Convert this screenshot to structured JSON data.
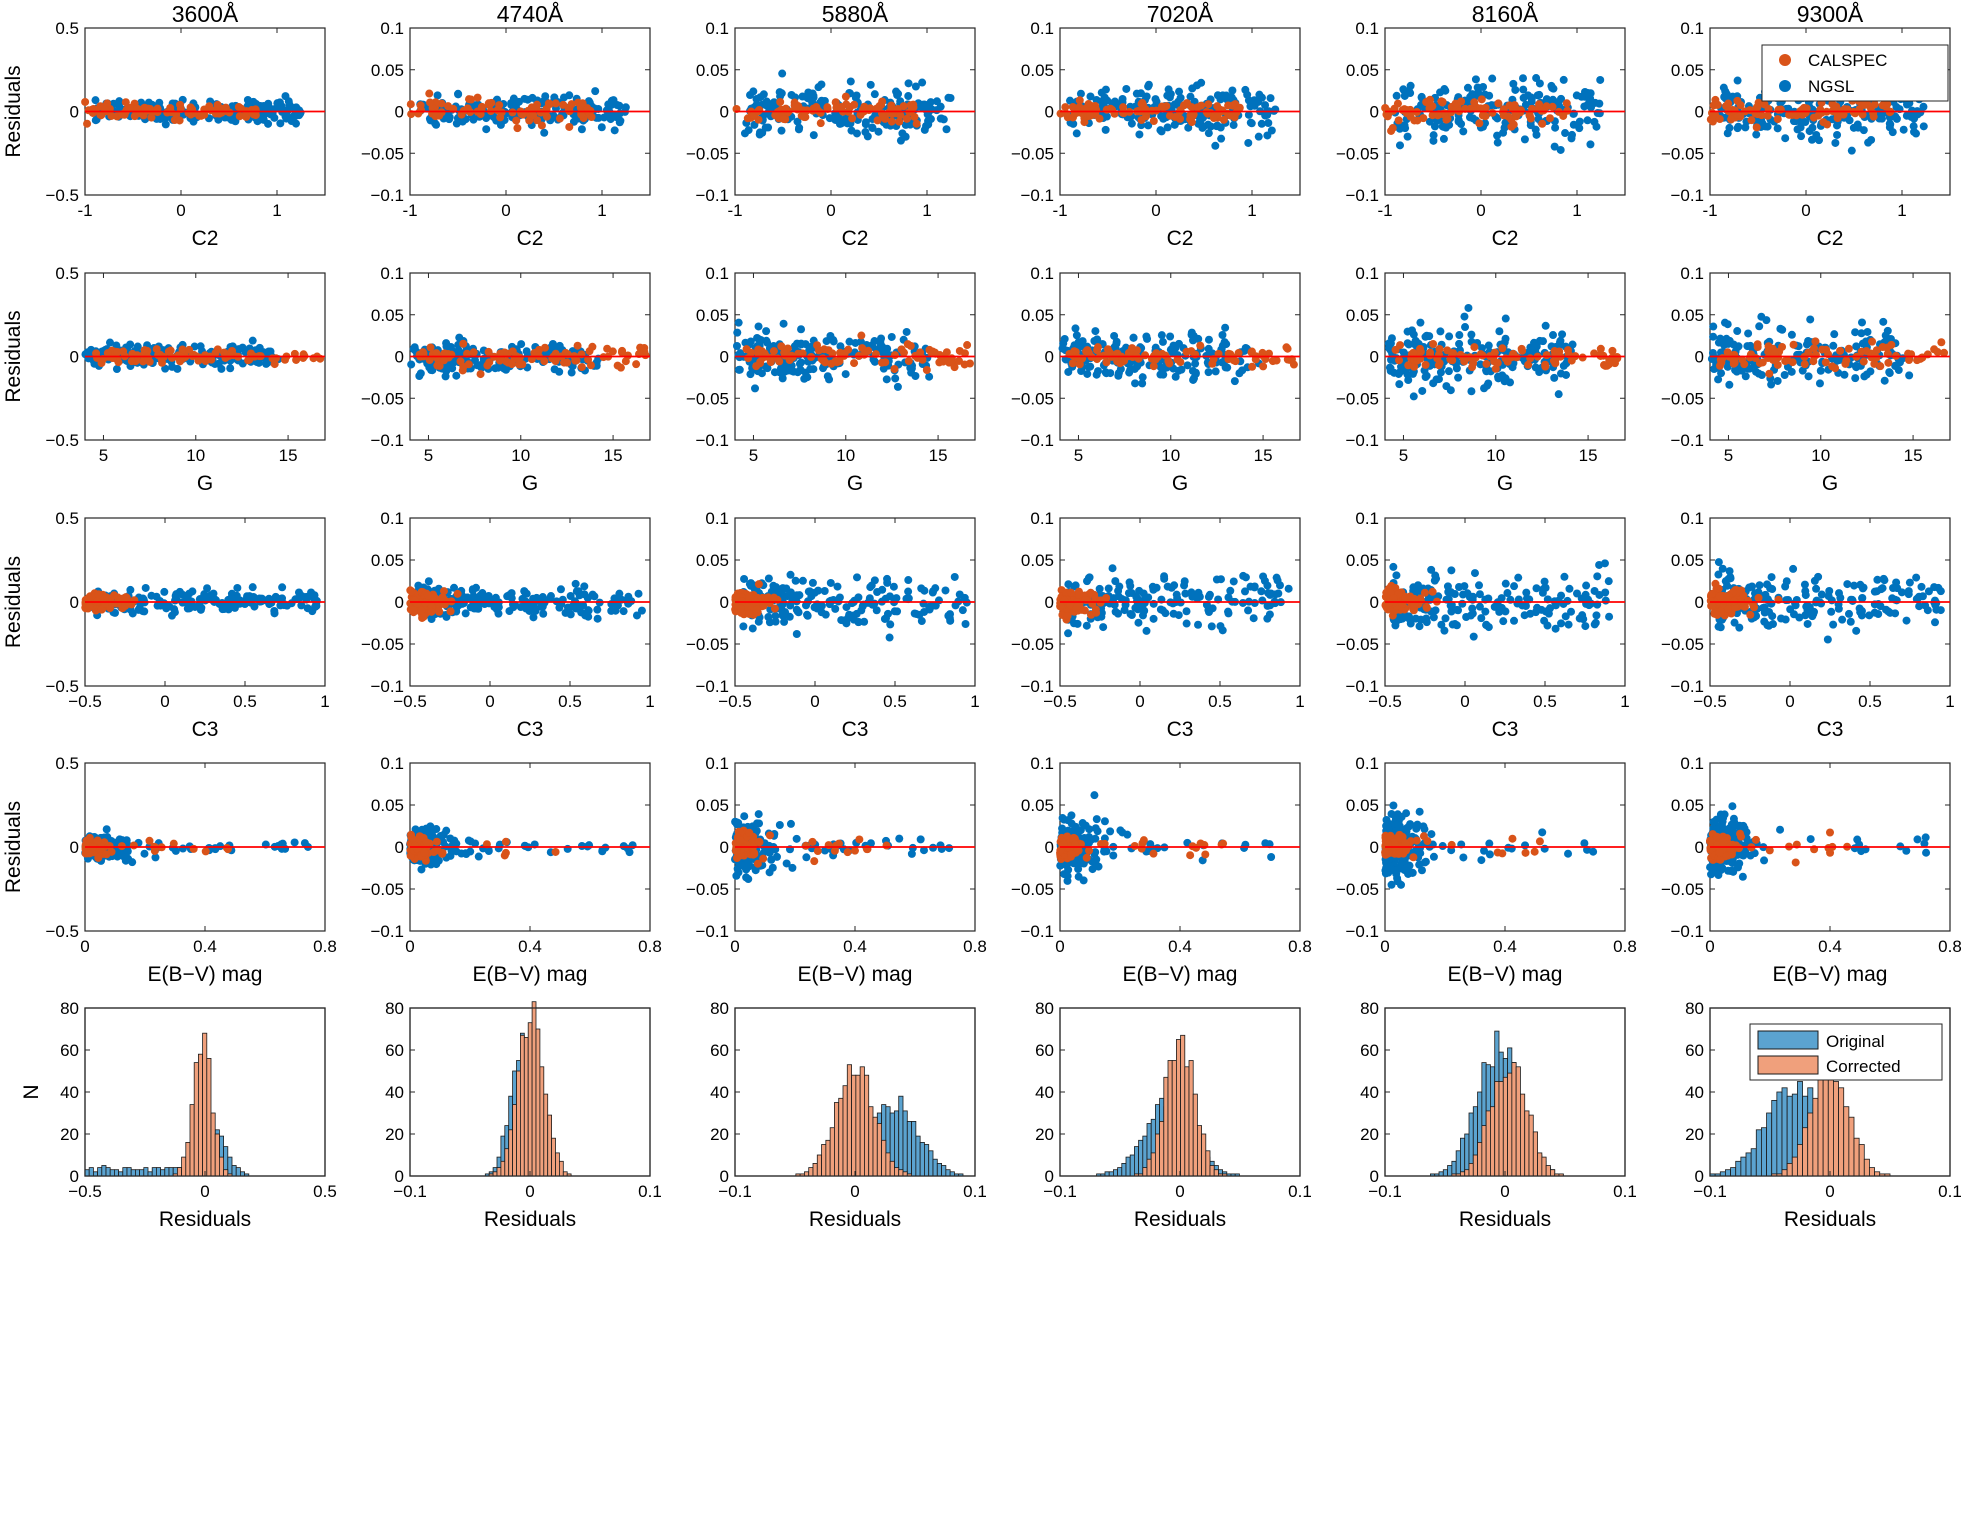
{
  "chart_data": {
    "type": "scatter",
    "figure": "Residual diagnostics grid (5 rows x 6 wavelength columns)",
    "columns": [
      "3600Å",
      "4740Å",
      "5880Å",
      "7020Å",
      "8160Å",
      "9300Å"
    ],
    "colors": {
      "calspec": "#D95319",
      "ngsl": "#0072BD",
      "zero_line": "#FF0000",
      "original": "#5BA3D0",
      "corrected": "#F0A07C"
    },
    "scatter_legend": [
      "CALSPEC",
      "NGSL"
    ],
    "hist_legend": [
      "Original",
      "Corrected"
    ],
    "rows": [
      {
        "name": "C2",
        "xlabel": "C2",
        "ylabel": "Residuals",
        "xlim": [
          -1,
          1.5
        ],
        "xticks": [
          -1,
          0,
          1
        ],
        "xtick_labels": [
          "-1",
          "0",
          "1"
        ],
        "x_ngsl": [
          -0.9,
          1.25
        ],
        "x_calspec": [
          -1.0,
          0.9
        ],
        "ylims": [
          [
            -0.5,
            0.5
          ],
          [
            -0.1,
            0.1
          ],
          [
            -0.1,
            0.1
          ],
          [
            -0.1,
            0.1
          ],
          [
            -0.1,
            0.1
          ],
          [
            -0.1,
            0.1
          ]
        ],
        "yticks": [
          [
            -0.5,
            0,
            0.5
          ],
          [
            -0.1,
            -0.05,
            0,
            0.05,
            0.1
          ],
          [
            -0.1,
            -0.05,
            0,
            0.05,
            0.1
          ],
          [
            -0.1,
            -0.05,
            0,
            0.05,
            0.1
          ],
          [
            -0.1,
            -0.05,
            0,
            0.05,
            0.1
          ],
          [
            -0.1,
            -0.05,
            0,
            0.05,
            0.1
          ]
        ],
        "ytick_labels": [
          [
            "−0.5",
            "0",
            "0.5"
          ],
          [
            "−0.1",
            "−0.05",
            "0",
            "0.05",
            "0.1"
          ],
          [
            "−0.1",
            "−0.05",
            "0",
            "0.05",
            "0.1"
          ],
          [
            "−0.1",
            "−0.05",
            "0",
            "0.05",
            "0.1"
          ],
          [
            "−0.1",
            "−0.05",
            "0",
            "0.05",
            "0.1"
          ],
          [
            "−0.1",
            "−0.05",
            "0",
            "0.05",
            "0.1"
          ]
        ]
      },
      {
        "name": "G",
        "xlabel": "G",
        "ylabel": "Residuals",
        "xlim": [
          4,
          17
        ],
        "xticks": [
          5,
          10,
          15
        ],
        "xtick_labels": [
          "5",
          "10",
          "15"
        ],
        "x_ngsl": [
          4.0,
          14.0
        ],
        "x_calspec": [
          4.5,
          17.0
        ],
        "ylims": [
          [
            -0.5,
            0.5
          ],
          [
            -0.1,
            0.1
          ],
          [
            -0.1,
            0.1
          ],
          [
            -0.1,
            0.1
          ],
          [
            -0.1,
            0.1
          ],
          [
            -0.1,
            0.1
          ]
        ],
        "yticks": [
          [
            -0.5,
            0,
            0.5
          ],
          [
            -0.1,
            -0.05,
            0,
            0.05,
            0.1
          ],
          [
            -0.1,
            -0.05,
            0,
            0.05,
            0.1
          ],
          [
            -0.1,
            -0.05,
            0,
            0.05,
            0.1
          ],
          [
            -0.1,
            -0.05,
            0,
            0.05,
            0.1
          ],
          [
            -0.1,
            -0.05,
            0,
            0.05,
            0.1
          ]
        ],
        "ytick_labels": [
          [
            "−0.5",
            "0",
            "0.5"
          ],
          [
            "−0.1",
            "−0.05",
            "0",
            "0.05",
            "0.1"
          ],
          [
            "−0.1",
            "−0.05",
            "0",
            "0.05",
            "0.1"
          ],
          [
            "−0.1",
            "−0.05",
            "0",
            "0.05",
            "0.1"
          ],
          [
            "−0.1",
            "−0.05",
            "0",
            "0.05",
            "0.1"
          ],
          [
            "−0.1",
            "−0.05",
            "0",
            "0.05",
            "0.1"
          ]
        ]
      },
      {
        "name": "C3",
        "xlabel": "C3",
        "ylabel": "Residuals",
        "xlim": [
          -0.5,
          1
        ],
        "xticks": [
          -0.5,
          0,
          0.5,
          1
        ],
        "xtick_labels": [
          "−0.5",
          "0",
          "0.5",
          "1"
        ],
        "x_ngsl": [
          -0.45,
          0.95
        ],
        "x_calspec": [
          -0.5,
          0.05
        ],
        "ylims": [
          [
            -0.5,
            0.5
          ],
          [
            -0.1,
            0.1
          ],
          [
            -0.1,
            0.1
          ],
          [
            -0.1,
            0.1
          ],
          [
            -0.1,
            0.1
          ],
          [
            -0.1,
            0.1
          ]
        ],
        "yticks": [
          [
            -0.5,
            0,
            0.5
          ],
          [
            -0.1,
            -0.05,
            0,
            0.05,
            0.1
          ],
          [
            -0.1,
            -0.05,
            0,
            0.05,
            0.1
          ],
          [
            -0.1,
            -0.05,
            0,
            0.05,
            0.1
          ],
          [
            -0.1,
            -0.05,
            0,
            0.05,
            0.1
          ],
          [
            -0.1,
            -0.05,
            0,
            0.05,
            0.1
          ]
        ],
        "ytick_labels": [
          [
            "−0.5",
            "0",
            "0.5"
          ],
          [
            "−0.1",
            "−0.05",
            "0",
            "0.05",
            "0.1"
          ],
          [
            "−0.1",
            "−0.05",
            "0",
            "0.05",
            "0.1"
          ],
          [
            "−0.1",
            "−0.05",
            "0",
            "0.05",
            "0.1"
          ],
          [
            "−0.1",
            "−0.05",
            "0",
            "0.05",
            "0.1"
          ],
          [
            "−0.1",
            "−0.05",
            "0",
            "0.05",
            "0.1"
          ]
        ]
      },
      {
        "name": "E(B-V)",
        "xlabel": "E(B−V) mag",
        "ylabel": "Residuals",
        "xlim": [
          0,
          0.8
        ],
        "xticks": [
          0,
          0.4,
          0.8
        ],
        "xtick_labels": [
          "0",
          "0.4",
          "0.8"
        ],
        "x_ngsl": [
          0.0,
          0.75
        ],
        "x_calspec": [
          0.0,
          0.55
        ],
        "ylims": [
          [
            -0.5,
            0.5
          ],
          [
            -0.1,
            0.1
          ],
          [
            -0.1,
            0.1
          ],
          [
            -0.1,
            0.1
          ],
          [
            -0.1,
            0.1
          ],
          [
            -0.1,
            0.1
          ]
        ],
        "yticks": [
          [
            -0.5,
            0,
            0.5
          ],
          [
            -0.1,
            -0.05,
            0,
            0.05,
            0.1
          ],
          [
            -0.1,
            -0.05,
            0,
            0.05,
            0.1
          ],
          [
            -0.1,
            -0.05,
            0,
            0.05,
            0.1
          ],
          [
            -0.1,
            -0.05,
            0,
            0.05,
            0.1
          ],
          [
            -0.1,
            -0.05,
            0,
            0.05,
            0.1
          ]
        ],
        "ytick_labels": [
          [
            "−0.5",
            "0",
            "0.5"
          ],
          [
            "−0.1",
            "−0.05",
            "0",
            "0.05",
            "0.1"
          ],
          [
            "−0.1",
            "−0.05",
            "0",
            "0.05",
            "0.1"
          ],
          [
            "−0.1",
            "−0.05",
            "0",
            "0.05",
            "0.1"
          ],
          [
            "−0.1",
            "−0.05",
            "0",
            "0.05",
            "0.1"
          ],
          [
            "−0.1",
            "−0.05",
            "0",
            "0.05",
            "0.1"
          ]
        ]
      }
    ],
    "scatter_spread": [
      {
        "ngsl": [
          0.04,
          0.011,
          0.018,
          0.018,
          0.022,
          0.02
        ],
        "calspec": [
          0.03,
          0.01,
          0.01,
          0.009,
          0.01,
          0.011
        ]
      }
    ],
    "histograms": {
      "xlabel": "Residuals",
      "ylabel": "N",
      "ylim": [
        0,
        80
      ],
      "yticks": [
        0,
        20,
        40,
        60,
        80
      ],
      "ytick_labels": [
        "0",
        "20",
        "40",
        "60",
        "80"
      ],
      "panels": [
        {
          "xlim": [
            -0.5,
            0.5
          ],
          "xticks": [
            -0.5,
            0,
            0.5
          ],
          "xtick_labels": [
            "−0.5",
            "0",
            "0.5"
          ],
          "bin_edges_range": [
            -0.5,
            0.2
          ],
          "bins": 40,
          "original_peak": {
            "mu": 0.04,
            "sigma": 0.05,
            "height": 22,
            "tail_level": 4
          },
          "corrected_peak": {
            "mu": -0.01,
            "sigma": 0.04,
            "height": 62
          }
        },
        {
          "xlim": [
            -0.1,
            0.1
          ],
          "xticks": [
            -0.1,
            0,
            0.1
          ],
          "xtick_labels": [
            "−0.1",
            "0",
            "0.1"
          ],
          "bin_edges_range": [
            -0.06,
            0.07
          ],
          "bins": 40,
          "original_peak": {
            "mu": -0.006,
            "sigma": 0.01,
            "height": 68,
            "tail_level": 0
          },
          "corrected_peak": {
            "mu": 0.001,
            "sigma": 0.011,
            "height": 80
          }
        },
        {
          "xlim": [
            -0.1,
            0.1
          ],
          "xticks": [
            -0.1,
            0,
            0.1
          ],
          "xtick_labels": [
            "−0.1",
            "0",
            "0.1"
          ],
          "bin_edges_range": [
            -0.06,
            0.09
          ],
          "bins": 42,
          "original_peak": {
            "mu": 0.033,
            "sigma": 0.02,
            "height": 34,
            "tail_level": 0
          },
          "corrected_peak": {
            "mu": 0.0,
            "sigma": 0.016,
            "height": 52
          }
        },
        {
          "xlim": [
            -0.1,
            0.1
          ],
          "xticks": [
            -0.1,
            0,
            0.1
          ],
          "xtick_labels": [
            "−0.1",
            "0",
            "0.1"
          ],
          "bin_edges_range": [
            -0.08,
            0.06
          ],
          "bins": 40,
          "original_peak": {
            "mu": -0.01,
            "sigma": 0.02,
            "height": 34,
            "tail_level": 0
          },
          "corrected_peak": {
            "mu": 0.0,
            "sigma": 0.012,
            "height": 67
          }
        },
        {
          "xlim": [
            -0.1,
            0.1
          ],
          "xticks": [
            -0.1,
            0,
            0.1
          ],
          "xtick_labels": [
            "−0.1",
            "0",
            "0.1"
          ],
          "bin_edges_range": [
            -0.08,
            0.07
          ],
          "bins": 42,
          "original_peak": {
            "mu": -0.006,
            "sigma": 0.018,
            "height": 63,
            "tail_level": 0
          },
          "corrected_peak": {
            "mu": 0.003,
            "sigma": 0.015,
            "height": 55
          }
        },
        {
          "xlim": [
            -0.1,
            0.1
          ],
          "xticks": [
            -0.1,
            0,
            0.1
          ],
          "xtick_labels": [
            "−0.1",
            "0",
            "0.1"
          ],
          "bin_edges_range": [
            -0.1,
            0.08
          ],
          "bins": 42,
          "original_peak": {
            "mu": -0.028,
            "sigma": 0.025,
            "height": 42,
            "tail_level": 0
          },
          "corrected_peak": {
            "mu": 0.0,
            "sigma": 0.016,
            "height": 52
          }
        }
      ]
    }
  }
}
